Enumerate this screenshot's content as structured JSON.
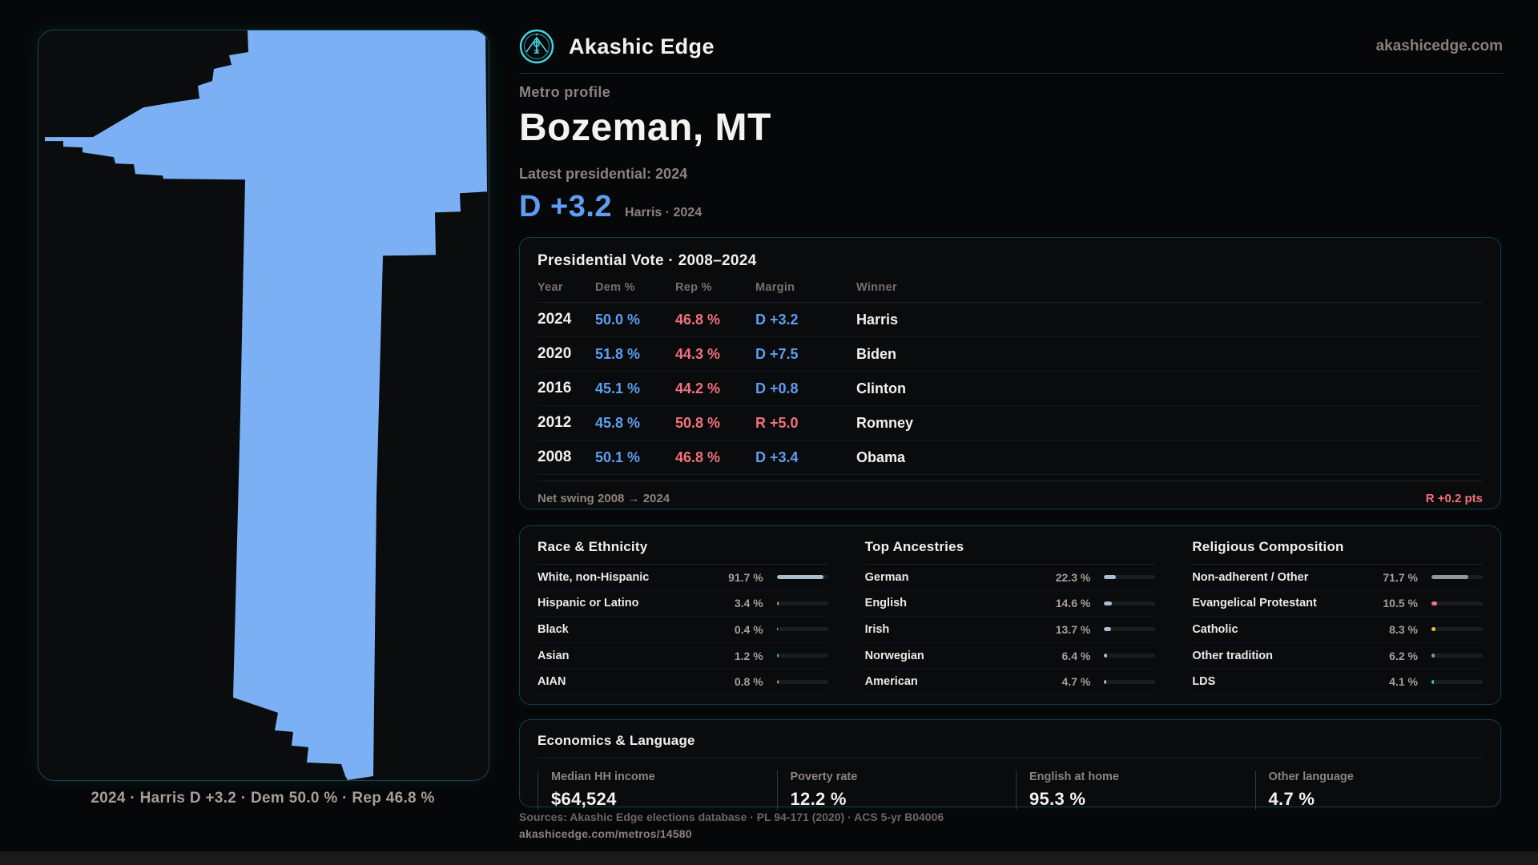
{
  "brand": {
    "name": "Akashic Edge",
    "domain": "akashicedge.com"
  },
  "profile": {
    "kicker": "Metro profile",
    "title": "Bozeman, MT",
    "latest_label": "Latest presidential: 2024",
    "headline_margin": "D +3.2",
    "headline_note": "Harris · 2024"
  },
  "map": {
    "caption": "2024 · Harris D +3.2 · Dem 50.0 % · Rep 46.8 %",
    "shape_fill": "#7cb0f4"
  },
  "chart_data": {
    "type": "table",
    "title": "Presidential Vote · 2008–2024",
    "columns": [
      "Year",
      "Dem %",
      "Rep %",
      "Margin",
      "Winner"
    ],
    "rows": [
      {
        "year": "2024",
        "dem": "50.0 %",
        "rep": "46.8 %",
        "margin": "D +3.2",
        "margin_party": "D",
        "winner": "Harris"
      },
      {
        "year": "2020",
        "dem": "51.8 %",
        "rep": "44.3 %",
        "margin": "D +7.5",
        "margin_party": "D",
        "winner": "Biden"
      },
      {
        "year": "2016",
        "dem": "45.1 %",
        "rep": "44.2 %",
        "margin": "D +0.8",
        "margin_party": "D",
        "winner": "Clinton"
      },
      {
        "year": "2012",
        "dem": "45.8 %",
        "rep": "50.8 %",
        "margin": "R +5.0",
        "margin_party": "R",
        "winner": "Romney"
      },
      {
        "year": "2008",
        "dem": "50.1 %",
        "rep": "46.8 %",
        "margin": "D +3.4",
        "margin_party": "D",
        "winner": "Obama"
      }
    ],
    "net_swing_label": "Net swing 2008 → 2024",
    "net_swing_value": "R +0.2 pts"
  },
  "demographics": {
    "race": {
      "title": "Race & Ethnicity",
      "rows": [
        {
          "label": "White, non-Hispanic",
          "value": "91.7 %",
          "pct": 91.7,
          "color": "#a9bdd3"
        },
        {
          "label": "Hispanic or Latino",
          "value": "3.4 %",
          "pct": 3.4,
          "color": "#e09b3c"
        },
        {
          "label": "Black",
          "value": "0.4 %",
          "pct": 0.4,
          "color": "#a9bdd3"
        },
        {
          "label": "Asian",
          "value": "1.2 %",
          "pct": 1.2,
          "color": "#3ec9be"
        },
        {
          "label": "AIAN",
          "value": "0.8 %",
          "pct": 0.8,
          "color": "#e09b3c"
        }
      ]
    },
    "ancestries": {
      "title": "Top Ancestries",
      "rows": [
        {
          "label": "German",
          "value": "22.3 %",
          "pct": 22.3,
          "color": "#a9bdd3"
        },
        {
          "label": "English",
          "value": "14.6 %",
          "pct": 14.6,
          "color": "#a9bdd3"
        },
        {
          "label": "Irish",
          "value": "13.7 %",
          "pct": 13.7,
          "color": "#a9bdd3"
        },
        {
          "label": "Norwegian",
          "value": "6.4 %",
          "pct": 6.4,
          "color": "#a9bdd3"
        },
        {
          "label": "American",
          "value": "4.7 %",
          "pct": 4.7,
          "color": "#a9bdd3"
        }
      ]
    },
    "religion": {
      "title": "Religious Composition",
      "rows": [
        {
          "label": "Non-adherent / Other",
          "value": "71.7 %",
          "pct": 71.7,
          "color": "#90979e"
        },
        {
          "label": "Evangelical Protestant",
          "value": "10.5 %",
          "pct": 10.5,
          "color": "#ef7886"
        },
        {
          "label": "Catholic",
          "value": "8.3 %",
          "pct": 8.3,
          "color": "#ecc23f"
        },
        {
          "label": "Other tradition",
          "value": "6.2 %",
          "pct": 6.2,
          "color": "#90979e"
        },
        {
          "label": "LDS",
          "value": "4.1 %",
          "pct": 4.1,
          "color": "#3ec9be"
        }
      ]
    }
  },
  "economics": {
    "title": "Economics & Language",
    "stats": [
      {
        "label": "Median HH income",
        "value": "$64,524"
      },
      {
        "label": "Poverty rate",
        "value": "12.2 %"
      },
      {
        "label": "English at home",
        "value": "95.3 %"
      },
      {
        "label": "Other language",
        "value": "4.7 %"
      }
    ]
  },
  "footer": {
    "sources": "Sources: Akashic Edge elections database · PL 94-171 (2020) · ACS 5-yr B04006",
    "permalink": "akashicedge.com/metros/14580"
  },
  "colors": {
    "dem": "#5e9df2",
    "rep": "#f0717c",
    "accent_teal": "#45d5e2"
  }
}
